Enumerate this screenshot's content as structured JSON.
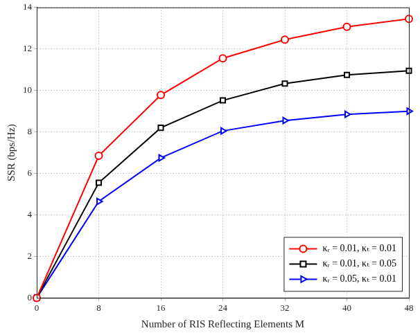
{
  "chart_data": {
    "type": "line",
    "x_label": "Number of RIS Reflecting Elements M",
    "y_label": "SSR (bps/Hz)",
    "x": [
      0,
      8,
      16,
      24,
      32,
      40,
      48
    ],
    "series": [
      {
        "name": "κᵣ = 0.01, κₜ = 0.01",
        "color": "#ff0000",
        "marker": "circle",
        "values": [
          0,
          6.85,
          9.78,
          11.55,
          12.45,
          13.07,
          13.45
        ]
      },
      {
        "name": "κᵣ = 0.01, κₜ = 0.05",
        "color": "#000000",
        "marker": "square",
        "values": [
          0,
          5.55,
          8.2,
          9.52,
          10.33,
          10.75,
          10.95
        ]
      },
      {
        "name": "κᵣ = 0.05, κₜ = 0.01",
        "color": "#0000ff",
        "marker": "triangle-right",
        "values": [
          0,
          4.65,
          6.75,
          8.05,
          8.55,
          8.85,
          9.0
        ]
      }
    ],
    "xlim": [
      0,
      48
    ],
    "xticks": [
      0,
      8,
      16,
      24,
      32,
      40,
      48
    ],
    "ylim": [
      0,
      14
    ],
    "yticks": [
      0,
      2,
      4,
      6,
      8,
      10,
      12,
      14
    ],
    "grid": true,
    "legend": "bottom right"
  }
}
